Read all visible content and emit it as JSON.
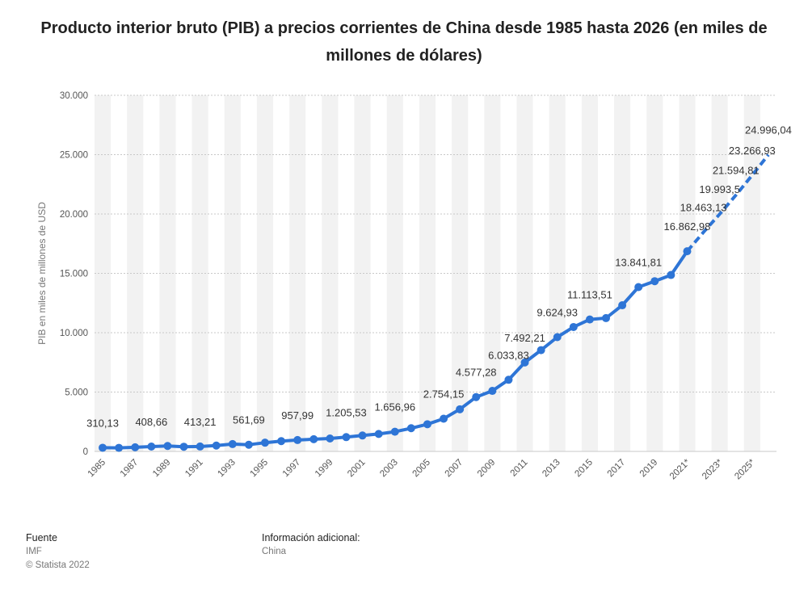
{
  "title": "Producto interior bruto (PIB) a precios corrientes de China desde 1985 hasta 2026 (en miles de millones de dólares)",
  "footer": {
    "source_heading": "Fuente",
    "source_lines": [
      "IMF",
      "© Statista 2022"
    ],
    "info_heading": "Información adicional:",
    "info_lines": [
      "China"
    ]
  },
  "colors": {
    "line": "#2e75d6",
    "band": "#f2f2f2",
    "grid": "#c8c8c8"
  },
  "chart_data": {
    "type": "line",
    "ylabel": "PIB en miles de millones de USD",
    "xlabel": "",
    "ylim": [
      0,
      30000
    ],
    "yticks": [
      0,
      5000,
      10000,
      15000,
      20000,
      25000,
      30000
    ],
    "ytick_labels": [
      "0",
      "5.000",
      "10.000",
      "15.000",
      "20.000",
      "25.000",
      "30.000"
    ],
    "x": [
      "1985",
      "1986",
      "1987",
      "1988",
      "1989",
      "1990",
      "1991",
      "1992",
      "1993",
      "1994",
      "1995",
      "1996",
      "1997",
      "1998",
      "1999",
      "2000",
      "2001",
      "2002",
      "2003",
      "2004",
      "2005",
      "2006",
      "2007",
      "2008",
      "2009",
      "2010",
      "2011",
      "2012",
      "2013",
      "2014",
      "2015",
      "2016",
      "2017",
      "2018",
      "2019",
      "2020",
      "2021*",
      "2022*",
      "2023*",
      "2024*",
      "2025*",
      "2026*"
    ],
    "xtick_labels": [
      "1985",
      "1987",
      "1989",
      "1991",
      "1993",
      "1995",
      "1997",
      "1999",
      "2001",
      "2003",
      "2005",
      "2007",
      "2009",
      "2011",
      "2013",
      "2015",
      "2017",
      "2019",
      "2021*",
      "2023*",
      "2025*"
    ],
    "values": [
      310.13,
      301,
      350,
      409,
      458,
      395,
      413.21,
      493,
      618,
      561.69,
      737,
      867,
      957.99,
      1030,
      1090,
      1205.53,
      1340,
      1470,
      1656.96,
      1955,
      2290,
      2754.15,
      3550,
      4577.28,
      5100,
      6033.83,
      7492.21,
      8532,
      9624.93,
      10480,
      11113.51,
      11230,
      12310,
      13841.81,
      14340,
      14860,
      16862.98,
      18463.13,
      19993.5,
      21594.81,
      23266.93,
      24996.04
    ],
    "forecast_from_index": 36,
    "data_labels": [
      {
        "index": 0,
        "text": "310,13"
      },
      {
        "index": 3,
        "text": "408,66"
      },
      {
        "index": 6,
        "text": "413,21"
      },
      {
        "index": 9,
        "text": "561,69"
      },
      {
        "index": 12,
        "text": "957,99"
      },
      {
        "index": 15,
        "text": "1.205,53"
      },
      {
        "index": 18,
        "text": "1.656,96"
      },
      {
        "index": 21,
        "text": "2.754,15"
      },
      {
        "index": 23,
        "text": "4.577,28"
      },
      {
        "index": 25,
        "text": "6.033,83"
      },
      {
        "index": 26,
        "text": "7.492,21"
      },
      {
        "index": 28,
        "text": "9.624,93"
      },
      {
        "index": 30,
        "text": "11.113,51"
      },
      {
        "index": 33,
        "text": "13.841,81"
      },
      {
        "index": 36,
        "text": "16.862,98"
      },
      {
        "index": 37,
        "text": "18.463,13"
      },
      {
        "index": 38,
        "text": "19.993,5"
      },
      {
        "index": 39,
        "text": "21.594,81"
      },
      {
        "index": 40,
        "text": "23.266,93"
      },
      {
        "index": 41,
        "text": "24.996,04"
      }
    ],
    "grid": true,
    "legend": "none"
  }
}
